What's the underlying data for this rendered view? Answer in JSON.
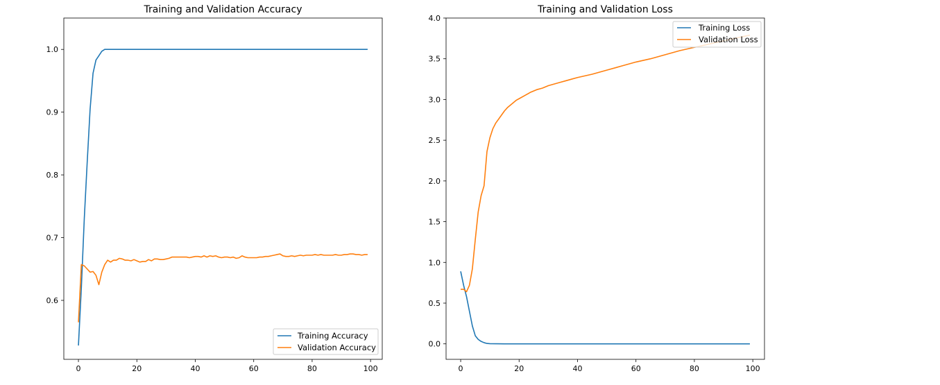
{
  "chart_data": [
    {
      "type": "line",
      "title": "Training and Validation Accuracy",
      "xlabel": "",
      "ylabel": "",
      "xlim": [
        -5,
        104
      ],
      "ylim": [
        0.506,
        1.05
      ],
      "xticks": [
        0,
        20,
        40,
        60,
        80,
        100
      ],
      "xtick_labels": [
        "0",
        "20",
        "40",
        "60",
        "80",
        "100"
      ],
      "yticks": [
        0.6,
        0.7,
        0.8,
        0.9,
        1.0
      ],
      "ytick_labels": [
        "0.6",
        "0.7",
        "0.8",
        "0.9",
        "1.0"
      ],
      "grid": false,
      "legend_position": "lower-right",
      "series": [
        {
          "name": "Training Accuracy",
          "color": "#1f77b4",
          "x": [
            0,
            1,
            2,
            3,
            4,
            5,
            6,
            7,
            8,
            9,
            10,
            15,
            20,
            30,
            40,
            50,
            60,
            70,
            80,
            90,
            99
          ],
          "y": [
            0.528,
            0.62,
            0.73,
            0.82,
            0.905,
            0.962,
            0.983,
            0.99,
            0.997,
            1.0,
            1.0,
            1.0,
            1.0,
            1.0,
            1.0,
            1.0,
            1.0,
            1.0,
            1.0,
            1.0,
            1.0
          ]
        },
        {
          "name": "Validation Accuracy",
          "color": "#ff7f0e",
          "x": [
            0,
            1,
            2,
            3,
            4,
            5,
            6,
            7,
            8,
            9,
            10,
            11,
            12,
            13,
            14,
            15,
            16,
            17,
            18,
            19,
            20,
            21,
            22,
            23,
            24,
            25,
            26,
            27,
            28,
            29,
            30,
            31,
            32,
            33,
            34,
            35,
            36,
            37,
            38,
            39,
            40,
            41,
            42,
            43,
            44,
            45,
            46,
            47,
            48,
            49,
            50,
            51,
            52,
            53,
            54,
            55,
            56,
            57,
            58,
            59,
            60,
            61,
            62,
            63,
            64,
            65,
            66,
            67,
            68,
            69,
            70,
            71,
            72,
            73,
            74,
            75,
            76,
            77,
            78,
            79,
            80,
            81,
            82,
            83,
            84,
            85,
            86,
            87,
            88,
            89,
            90,
            91,
            92,
            93,
            94,
            95,
            96,
            97,
            98,
            99
          ],
          "y": [
            0.565,
            0.657,
            0.655,
            0.65,
            0.645,
            0.646,
            0.64,
            0.625,
            0.645,
            0.657,
            0.664,
            0.661,
            0.664,
            0.664,
            0.667,
            0.666,
            0.664,
            0.664,
            0.663,
            0.665,
            0.663,
            0.661,
            0.662,
            0.662,
            0.665,
            0.663,
            0.666,
            0.666,
            0.665,
            0.665,
            0.666,
            0.667,
            0.669,
            0.669,
            0.669,
            0.669,
            0.669,
            0.669,
            0.668,
            0.669,
            0.67,
            0.67,
            0.669,
            0.671,
            0.669,
            0.671,
            0.67,
            0.671,
            0.669,
            0.668,
            0.669,
            0.669,
            0.668,
            0.669,
            0.667,
            0.668,
            0.671,
            0.669,
            0.668,
            0.668,
            0.668,
            0.668,
            0.669,
            0.669,
            0.67,
            0.67,
            0.671,
            0.672,
            0.673,
            0.674,
            0.671,
            0.67,
            0.67,
            0.671,
            0.67,
            0.671,
            0.672,
            0.671,
            0.672,
            0.672,
            0.672,
            0.673,
            0.672,
            0.673,
            0.672,
            0.672,
            0.672,
            0.672,
            0.673,
            0.672,
            0.672,
            0.673,
            0.673,
            0.674,
            0.674,
            0.673,
            0.673,
            0.672,
            0.673,
            0.673
          ]
        }
      ]
    },
    {
      "type": "line",
      "title": "Training and Validation Loss",
      "xlabel": "",
      "ylabel": "",
      "xlim": [
        -5,
        104
      ],
      "ylim": [
        -0.19,
        4.0
      ],
      "xticks": [
        0,
        20,
        40,
        60,
        80,
        100
      ],
      "xtick_labels": [
        "0",
        "20",
        "40",
        "60",
        "80",
        "100"
      ],
      "yticks": [
        0.0,
        0.5,
        1.0,
        1.5,
        2.0,
        2.5,
        3.0,
        3.5,
        4.0
      ],
      "ytick_labels": [
        "0.0",
        "0.5",
        "1.0",
        "1.5",
        "2.0",
        "2.5",
        "3.0",
        "3.5",
        "4.0"
      ],
      "grid": false,
      "legend_position": "upper-right",
      "series": [
        {
          "name": "Training Loss",
          "color": "#1f77b4",
          "x": [
            0,
            1,
            2,
            3,
            4,
            5,
            6,
            7,
            8,
            9,
            10,
            15,
            20,
            30,
            40,
            50,
            60,
            70,
            80,
            90,
            99
          ],
          "y": [
            0.89,
            0.72,
            0.58,
            0.4,
            0.22,
            0.1,
            0.055,
            0.03,
            0.015,
            0.005,
            0.002,
            0.0,
            0.0,
            0.0,
            0.0,
            0.0,
            0.0,
            0.0,
            0.0,
            0.0,
            0.0
          ]
        },
        {
          "name": "Validation Loss",
          "color": "#ff7f0e",
          "x": [
            0,
            1,
            2,
            3,
            4,
            5,
            6,
            7,
            8,
            9,
            10,
            11,
            12,
            13,
            14,
            15,
            16,
            17,
            18,
            19,
            20,
            22,
            24,
            26,
            28,
            30,
            32,
            34,
            36,
            38,
            40,
            45,
            50,
            55,
            60,
            65,
            70,
            75,
            80,
            85,
            90,
            95,
            99
          ],
          "y": [
            0.67,
            0.67,
            0.64,
            0.72,
            0.92,
            1.28,
            1.62,
            1.82,
            1.94,
            2.36,
            2.53,
            2.64,
            2.71,
            2.76,
            2.81,
            2.86,
            2.9,
            2.93,
            2.96,
            2.99,
            3.01,
            3.05,
            3.09,
            3.12,
            3.14,
            3.17,
            3.19,
            3.21,
            3.23,
            3.25,
            3.27,
            3.31,
            3.36,
            3.41,
            3.46,
            3.5,
            3.55,
            3.6,
            3.64,
            3.68,
            3.72,
            3.76,
            3.79
          ]
        }
      ]
    }
  ]
}
